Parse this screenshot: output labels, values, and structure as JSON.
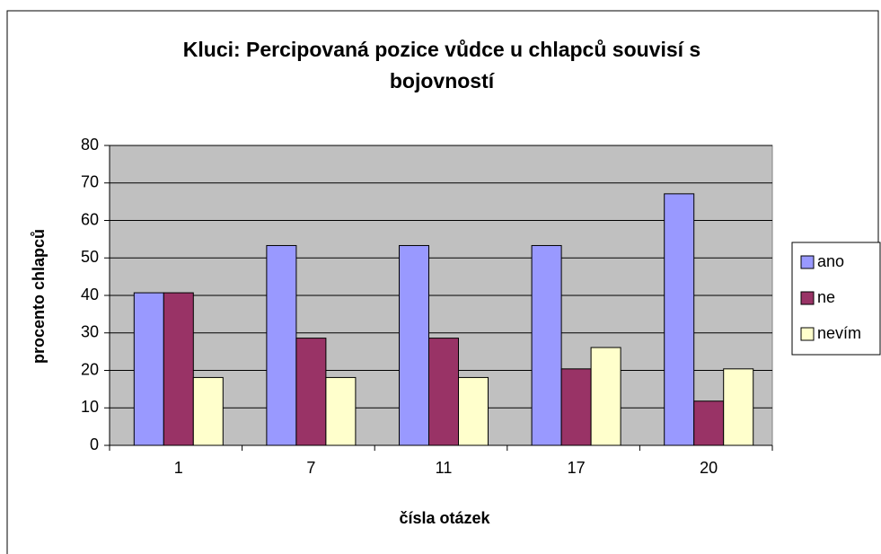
{
  "chart_data": {
    "type": "bar",
    "title": "Kluci: Percipovaná pozice vůdce u chlapců souvisí s bojovností",
    "x_label": "čísla otázek",
    "y_label": "procento chlapců",
    "categories": [
      "1",
      "7",
      "11",
      "17",
      "20"
    ],
    "series": [
      {
        "name": "ano",
        "color": "#9999ff",
        "values": [
          40.7,
          53.3,
          53.3,
          53.3,
          67.1
        ]
      },
      {
        "name": "ne",
        "color": "#993366",
        "values": [
          40.7,
          28.6,
          28.6,
          20.4,
          11.8
        ]
      },
      {
        "name": "nevím",
        "color": "#ffffcc",
        "values": [
          18.1,
          18.1,
          18.1,
          26.1,
          20.4
        ]
      }
    ],
    "ylim": [
      0,
      80
    ],
    "yticks": [
      0,
      10,
      20,
      30,
      40,
      50,
      60,
      70,
      80
    ],
    "grid": true,
    "legend": "right"
  }
}
